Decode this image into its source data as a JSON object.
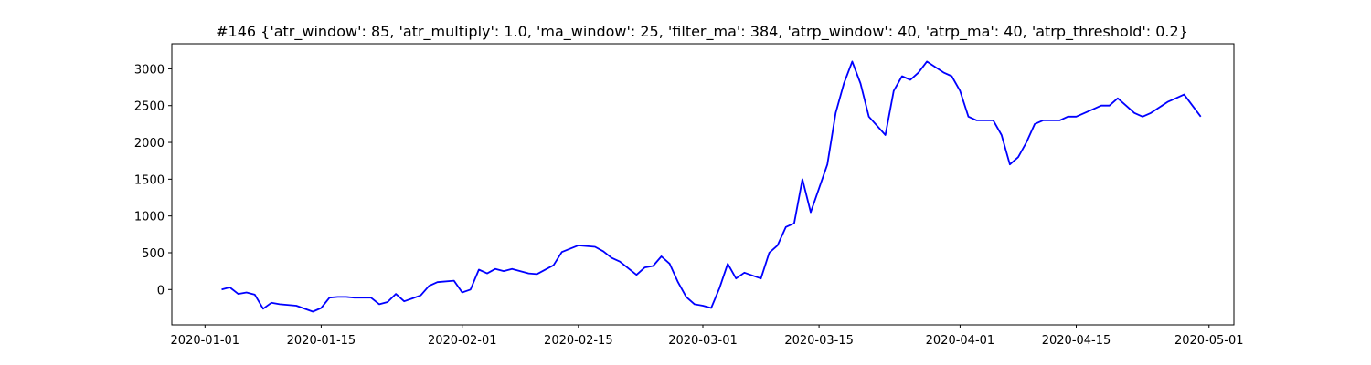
{
  "chart_data": {
    "type": "line",
    "title": "#146 {'atr_window': 85, 'atr_multiply': 1.0, 'ma_window': 25, 'filter_ma': 384, 'atrp_window': 40, 'atrp_ma': 40, 'atrp_threshold': 0.2}",
    "xlabel": "",
    "ylabel": "",
    "xlim": [
      "2019-12-28",
      "2020-05-04"
    ],
    "ylim": [
      -480,
      3340
    ],
    "x_ticks": [
      "2020-01-01",
      "2020-01-15",
      "2020-02-01",
      "2020-02-15",
      "2020-03-01",
      "2020-03-15",
      "2020-04-01",
      "2020-04-15",
      "2020-05-01"
    ],
    "y_ticks": [
      0,
      500,
      1000,
      1500,
      2000,
      2500,
      3000
    ],
    "grid": false,
    "legend": "none",
    "color": "#0000ff",
    "series": [
      {
        "x": [
          "2020-01-03",
          "2020-01-04",
          "2020-01-05",
          "2020-01-06",
          "2020-01-07",
          "2020-01-08",
          "2020-01-09",
          "2020-01-10",
          "2020-01-12",
          "2020-01-14",
          "2020-01-15",
          "2020-01-16",
          "2020-01-17",
          "2020-01-18",
          "2020-01-19",
          "2020-01-21",
          "2020-01-22",
          "2020-01-23",
          "2020-01-24",
          "2020-01-25",
          "2020-01-26",
          "2020-01-27",
          "2020-01-28",
          "2020-01-29",
          "2020-01-31",
          "2020-02-01",
          "2020-02-02",
          "2020-02-03",
          "2020-02-04",
          "2020-02-05",
          "2020-02-06",
          "2020-02-07",
          "2020-02-09",
          "2020-02-10",
          "2020-02-12",
          "2020-02-13",
          "2020-02-15",
          "2020-02-17",
          "2020-02-18",
          "2020-02-19",
          "2020-02-20",
          "2020-02-22",
          "2020-02-23",
          "2020-02-24",
          "2020-02-25",
          "2020-02-26",
          "2020-02-27",
          "2020-02-28",
          "2020-02-29",
          "2020-03-01",
          "2020-03-02",
          "2020-03-03",
          "2020-03-04",
          "2020-03-05",
          "2020-03-06",
          "2020-03-08",
          "2020-03-09",
          "2020-03-10",
          "2020-03-11",
          "2020-03-12",
          "2020-03-13",
          "2020-03-14",
          "2020-03-16",
          "2020-03-17",
          "2020-03-18",
          "2020-03-19",
          "2020-03-20",
          "2020-03-21",
          "2020-03-23",
          "2020-03-24",
          "2020-03-25",
          "2020-03-26",
          "2020-03-27",
          "2020-03-28",
          "2020-03-30",
          "2020-03-31",
          "2020-04-01",
          "2020-04-02",
          "2020-04-03",
          "2020-04-05",
          "2020-04-06",
          "2020-04-07",
          "2020-04-08",
          "2020-04-09",
          "2020-04-10",
          "2020-04-11",
          "2020-04-13",
          "2020-04-14",
          "2020-04-15",
          "2020-04-16",
          "2020-04-17",
          "2020-04-18",
          "2020-04-19",
          "2020-04-20",
          "2020-04-21",
          "2020-04-22",
          "2020-04-23",
          "2020-04-24",
          "2020-04-26",
          "2020-04-27",
          "2020-04-28",
          "2020-04-29",
          "2020-04-30"
        ],
        "values": [
          0,
          30,
          -60,
          -40,
          -70,
          -260,
          -180,
          -200,
          -220,
          -300,
          -250,
          -110,
          -100,
          -100,
          -110,
          -110,
          -200,
          -170,
          -60,
          -160,
          -120,
          -80,
          50,
          100,
          120,
          -40,
          0,
          270,
          220,
          280,
          250,
          280,
          220,
          210,
          330,
          510,
          600,
          580,
          520,
          430,
          380,
          200,
          300,
          320,
          450,
          350,
          100,
          -100,
          -200,
          -220,
          -250,
          20,
          350,
          150,
          230,
          150,
          500,
          600,
          850,
          900,
          1500,
          1050,
          1700,
          2400,
          2800,
          3100,
          2800,
          2350,
          2100,
          2700,
          2900,
          2850,
          2950,
          3100,
          2950,
          2900,
          2700,
          2350,
          2300,
          2300,
          2100,
          1700,
          1800,
          2000,
          2250,
          2300,
          2300,
          2350,
          2350,
          2400,
          2450,
          2500,
          2500,
          2600,
          2500,
          2400,
          2350,
          2400,
          2550,
          2600,
          2650,
          2500,
          2350
        ]
      }
    ]
  }
}
